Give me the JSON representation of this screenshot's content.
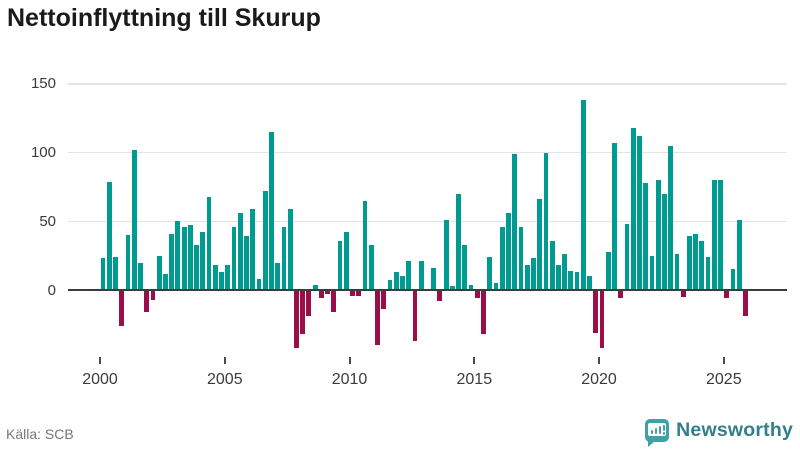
{
  "title": "Nettoinflyttning till Skurup",
  "source": "Källa: SCB",
  "brand": {
    "name": "Newsworthy"
  },
  "colors": {
    "positive": "#009b90",
    "negative": "#9c0e48",
    "axis": "#3c3c3c",
    "grid": "#e4e4e4",
    "title": "#1a1a1a",
    "tick_label": "#3b3b3b",
    "source_text": "#76767e",
    "brand_text": "#317f8d",
    "brand_icon": "#41a0a6"
  },
  "chart_data": {
    "type": "bar",
    "title": "Nettoinflyttning till Skurup",
    "frequency": "quarterly",
    "start_year": 2000,
    "xlabel": "",
    "ylabel": "",
    "ylim": [
      -50,
      155
    ],
    "y_ticks": [
      0,
      50,
      100,
      150
    ],
    "y_gridlines": [
      50,
      100,
      150
    ],
    "x_tick_years": [
      2000,
      2005,
      2010,
      2015,
      2020,
      2025
    ],
    "x_tick_labels": [
      "2000",
      "2005",
      "2010",
      "2015",
      "2020",
      "2025"
    ],
    "legend": "none",
    "grid": "horizontal-only",
    "series_by_year": [
      {
        "year": 2000,
        "values": [
          23,
          79,
          24,
          -26
        ]
      },
      {
        "year": 2001,
        "values": [
          40,
          102,
          20,
          -16
        ]
      },
      {
        "year": 2002,
        "values": [
          -7,
          25,
          12,
          41
        ]
      },
      {
        "year": 2003,
        "values": [
          50,
          46,
          47,
          33
        ]
      },
      {
        "year": 2004,
        "values": [
          42,
          68,
          18,
          13
        ]
      },
      {
        "year": 2005,
        "values": [
          18,
          46,
          56,
          39
        ]
      },
      {
        "year": 2006,
        "values": [
          59,
          8,
          72,
          115
        ]
      },
      {
        "year": 2007,
        "values": [
          20,
          46,
          59,
          -42
        ]
      },
      {
        "year": 2008,
        "values": [
          -32,
          -19,
          4,
          -6
        ]
      },
      {
        "year": 2009,
        "values": [
          -3,
          -16,
          36,
          42
        ]
      },
      {
        "year": 2010,
        "values": [
          -4,
          -4,
          65,
          33
        ]
      },
      {
        "year": 2011,
        "values": [
          -40,
          -14,
          7,
          13
        ]
      },
      {
        "year": 2012,
        "values": [
          10,
          21,
          -37,
          21
        ]
      },
      {
        "year": 2013,
        "values": [
          1,
          16,
          -8,
          51
        ]
      },
      {
        "year": 2014,
        "values": [
          3,
          70,
          33,
          4
        ]
      },
      {
        "year": 2015,
        "values": [
          -6,
          -32,
          24,
          5
        ]
      },
      {
        "year": 2016,
        "values": [
          46,
          56,
          99,
          46
        ]
      },
      {
        "year": 2017,
        "values": [
          18,
          23,
          66,
          100
        ]
      },
      {
        "year": 2018,
        "values": [
          36,
          18,
          26,
          14
        ]
      },
      {
        "year": 2019,
        "values": [
          13,
          138,
          10,
          -31
        ]
      },
      {
        "year": 2020,
        "values": [
          -42,
          28,
          107,
          -6
        ]
      },
      {
        "year": 2021,
        "values": [
          48,
          118,
          112,
          78
        ]
      },
      {
        "year": 2022,
        "values": [
          25,
          80,
          70,
          105
        ]
      },
      {
        "year": 2023,
        "values": [
          26,
          -5,
          39,
          41
        ]
      },
      {
        "year": 2024,
        "values": [
          36,
          24,
          80,
          80
        ]
      },
      {
        "year": 2025,
        "values": [
          -6,
          15,
          51,
          -19
        ]
      }
    ]
  }
}
